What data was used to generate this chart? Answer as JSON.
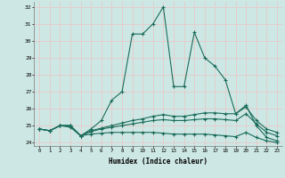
{
  "title": "",
  "xlabel": "Humidex (Indice chaleur)",
  "xlim": [
    -0.5,
    23.5
  ],
  "ylim": [
    23.8,
    32.3
  ],
  "yticks": [
    24,
    25,
    26,
    27,
    28,
    29,
    30,
    31,
    32
  ],
  "xticks": [
    0,
    1,
    2,
    3,
    4,
    5,
    6,
    7,
    8,
    9,
    10,
    11,
    12,
    13,
    14,
    15,
    16,
    17,
    18,
    19,
    20,
    21,
    22,
    23
  ],
  "bg_color": "#cde8e4",
  "line_color": "#1a6b5a",
  "grid_color": "#e8c8c8",
  "line1": [
    24.8,
    24.7,
    25.0,
    25.0,
    24.4,
    24.8,
    25.3,
    26.5,
    27.0,
    30.4,
    30.4,
    31.0,
    32.0,
    27.3,
    27.3,
    30.5,
    29.0,
    28.5,
    27.7,
    25.7,
    26.2,
    25.0,
    24.3,
    24.1
  ],
  "line2": [
    24.8,
    24.7,
    25.0,
    25.0,
    24.4,
    24.7,
    24.85,
    25.0,
    25.15,
    25.3,
    25.4,
    25.55,
    25.65,
    25.55,
    25.55,
    25.65,
    25.75,
    25.75,
    25.7,
    25.7,
    26.1,
    25.3,
    24.8,
    24.6
  ],
  "line3": [
    24.8,
    24.7,
    25.0,
    25.0,
    24.4,
    24.65,
    24.8,
    24.9,
    25.0,
    25.1,
    25.2,
    25.3,
    25.35,
    25.3,
    25.3,
    25.35,
    25.4,
    25.4,
    25.35,
    25.3,
    25.7,
    25.1,
    24.6,
    24.4
  ],
  "line4": [
    24.8,
    24.7,
    25.0,
    24.9,
    24.4,
    24.5,
    24.55,
    24.6,
    24.6,
    24.6,
    24.6,
    24.6,
    24.55,
    24.5,
    24.5,
    24.5,
    24.5,
    24.45,
    24.4,
    24.35,
    24.6,
    24.3,
    24.1,
    24.0
  ]
}
